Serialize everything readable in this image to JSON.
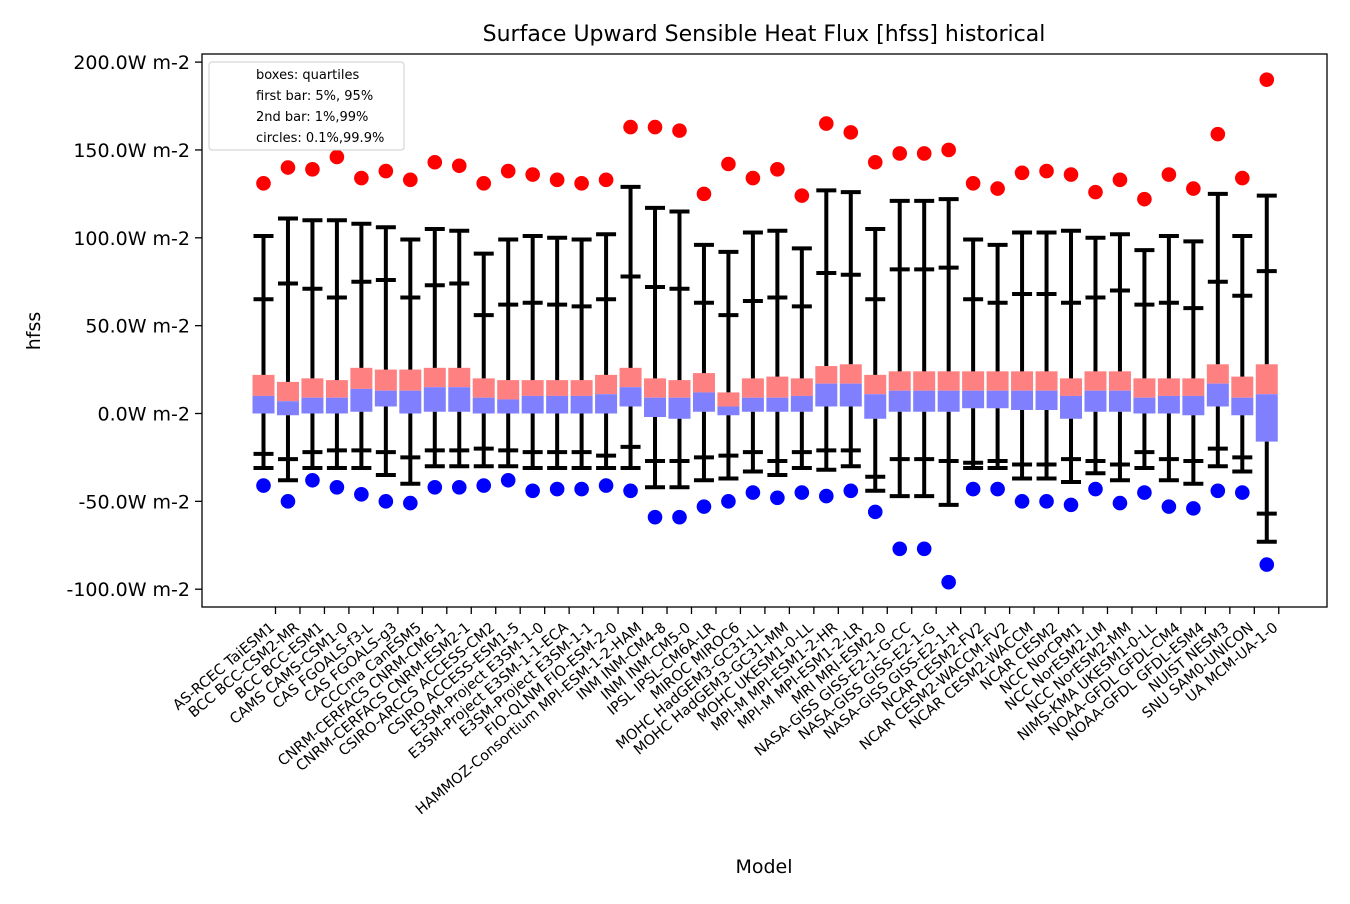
{
  "chart_data": {
    "type": "box",
    "title": "Surface Upward Sensible Heat Flux [hfss] historical",
    "xlabel": "Model",
    "ylabel": "hfss",
    "ylim": [
      -110,
      205
    ],
    "yticks": [
      -100,
      -50,
      0,
      50,
      100,
      150,
      200
    ],
    "ytick_labels": [
      "-100.0W m-2",
      "-50.0W m-2",
      "0.0W m-2",
      "50.0W m-2",
      "100.0W m-2",
      "150.0W m-2",
      "200.0W m-2"
    ],
    "legend": {
      "placement": "top-left",
      "entries": [
        "boxes: quartiles",
        "first bar: 5%, 95%",
        "2nd bar: 1%,99%",
        "circles: 0.1%,99.9%"
      ]
    },
    "colors": {
      "upper_box": "#ff8080",
      "lower_box": "#8080ff",
      "whisker": "#000000",
      "high_circle": "#ff0000",
      "low_circle": "#0000ff"
    },
    "fields": [
      "p0_1",
      "p1",
      "p5",
      "q1",
      "median",
      "q3",
      "p95",
      "p99",
      "p99_9"
    ],
    "models": [
      {
        "name": "AS-RCEC TaiESM1",
        "p0_1": -41,
        "p1": -31,
        "p5": -23,
        "q1": 0,
        "median": 10,
        "q3": 22,
        "p95": 65,
        "p99": 101,
        "p99_9": 131
      },
      {
        "name": "BCC BCC-CSM2-MR",
        "p0_1": -50,
        "p1": -38,
        "p5": -26,
        "q1": -1,
        "median": 7,
        "q3": 18,
        "p95": 74,
        "p99": 111,
        "p99_9": 140
      },
      {
        "name": "BCC BCC-ESM1",
        "p0_1": -38,
        "p1": -31,
        "p5": -22,
        "q1": 0,
        "median": 9,
        "q3": 20,
        "p95": 71,
        "p99": 110,
        "p99_9": 139
      },
      {
        "name": "CAMS CAMS-CSM1-0",
        "p0_1": -42,
        "p1": -31,
        "p5": -21,
        "q1": 0,
        "median": 9,
        "q3": 19,
        "p95": 66,
        "p99": 110,
        "p99_9": 146
      },
      {
        "name": "CAS FGOALS-f3-L",
        "p0_1": -46,
        "p1": -31,
        "p5": -21,
        "q1": 1,
        "median": 14,
        "q3": 26,
        "p95": 75,
        "p99": 108,
        "p99_9": 134
      },
      {
        "name": "CAS FGOALS-g3",
        "p0_1": -50,
        "p1": -35,
        "p5": -22,
        "q1": 4,
        "median": 13,
        "q3": 25,
        "p95": 76,
        "p99": 106,
        "p99_9": 138
      },
      {
        "name": "CCCma CanESM5",
        "p0_1": -51,
        "p1": -40,
        "p5": -25,
        "q1": 0,
        "median": 13,
        "q3": 25,
        "p95": 66,
        "p99": 99,
        "p99_9": 133
      },
      {
        "name": "CNRM-CERFACS CNRM-CM6-1",
        "p0_1": -42,
        "p1": -30,
        "p5": -21,
        "q1": 1,
        "median": 15,
        "q3": 26,
        "p95": 73,
        "p99": 105,
        "p99_9": 143
      },
      {
        "name": "CNRM-CERFACS CNRM-ESM2-1",
        "p0_1": -42,
        "p1": -30,
        "p5": -21,
        "q1": 1,
        "median": 15,
        "q3": 26,
        "p95": 74,
        "p99": 104,
        "p99_9": 141
      },
      {
        "name": "CSIRO-ARCCS ACCESS-CM2",
        "p0_1": -41,
        "p1": -30,
        "p5": -20,
        "q1": 0,
        "median": 9,
        "q3": 20,
        "p95": 56,
        "p99": 91,
        "p99_9": 131
      },
      {
        "name": "CSIRO ACCESS-ESM1-5",
        "p0_1": -38,
        "p1": -30,
        "p5": -21,
        "q1": 0,
        "median": 8,
        "q3": 19,
        "p95": 62,
        "p99": 99,
        "p99_9": 138
      },
      {
        "name": "E3SM-Project E3SM-1-0",
        "p0_1": -44,
        "p1": -31,
        "p5": -22,
        "q1": 0,
        "median": 10,
        "q3": 19,
        "p95": 63,
        "p99": 101,
        "p99_9": 136
      },
      {
        "name": "E3SM-Project E3SM-1-1-ECA",
        "p0_1": -43,
        "p1": -31,
        "p5": -22,
        "q1": 0,
        "median": 10,
        "q3": 19,
        "p95": 62,
        "p99": 100,
        "p99_9": 133
      },
      {
        "name": "E3SM-Project E3SM-1-1",
        "p0_1": -43,
        "p1": -31,
        "p5": -22,
        "q1": 0,
        "median": 10,
        "q3": 19,
        "p95": 61,
        "p99": 99,
        "p99_9": 131
      },
      {
        "name": "FIO-QLNM FIO-ESM-2-0",
        "p0_1": -41,
        "p1": -31,
        "p5": -24,
        "q1": 0,
        "median": 11,
        "q3": 22,
        "p95": 65,
        "p99": 102,
        "p99_9": 133
      },
      {
        "name": "HAMMOZ-Consortium MPI-ESM-1-2-HAM",
        "p0_1": -44,
        "p1": -31,
        "p5": -19,
        "q1": 4,
        "median": 15,
        "q3": 26,
        "p95": 78,
        "p99": 129,
        "p99_9": 163
      },
      {
        "name": "INM INM-CM4-8",
        "p0_1": -59,
        "p1": -42,
        "p5": -27,
        "q1": -2,
        "median": 9,
        "q3": 20,
        "p95": 72,
        "p99": 117,
        "p99_9": 163
      },
      {
        "name": "INM INM-CM5-0",
        "p0_1": -59,
        "p1": -42,
        "p5": -27,
        "q1": -3,
        "median": 9,
        "q3": 19,
        "p95": 71,
        "p99": 115,
        "p99_9": 161
      },
      {
        "name": "IPSL IPSL-CM6A-LR",
        "p0_1": -53,
        "p1": -38,
        "p5": -25,
        "q1": 1,
        "median": 12,
        "q3": 23,
        "p95": 63,
        "p99": 96,
        "p99_9": 125
      },
      {
        "name": "MIROC MIROC6",
        "p0_1": -50,
        "p1": -37,
        "p5": -24,
        "q1": -1,
        "median": 4,
        "q3": 12,
        "p95": 56,
        "p99": 92,
        "p99_9": 142
      },
      {
        "name": "MOHC HadGEM3-GC31-LL",
        "p0_1": -45,
        "p1": -33,
        "p5": -22,
        "q1": 1,
        "median": 9,
        "q3": 20,
        "p95": 64,
        "p99": 103,
        "p99_9": 134
      },
      {
        "name": "MOHC HadGEM3-GC31-MM",
        "p0_1": -48,
        "p1": -35,
        "p5": -27,
        "q1": 1,
        "median": 9,
        "q3": 21,
        "p95": 66,
        "p99": 104,
        "p99_9": 139
      },
      {
        "name": "MOHC UKESM1-0-LL",
        "p0_1": -45,
        "p1": -31,
        "p5": -22,
        "q1": 1,
        "median": 10,
        "q3": 20,
        "p95": 61,
        "p99": 94,
        "p99_9": 124
      },
      {
        "name": "MPI-M MPI-ESM1-2-HR",
        "p0_1": -47,
        "p1": -32,
        "p5": -21,
        "q1": 4,
        "median": 17,
        "q3": 27,
        "p95": 80,
        "p99": 127,
        "p99_9": 165
      },
      {
        "name": "MPI-M MPI-ESM1-2-LR",
        "p0_1": -44,
        "p1": -30,
        "p5": -21,
        "q1": 4,
        "median": 17,
        "q3": 28,
        "p95": 79,
        "p99": 126,
        "p99_9": 160
      },
      {
        "name": "MRI MRI-ESM2-0",
        "p0_1": -56,
        "p1": -44,
        "p5": -36,
        "q1": -3,
        "median": 11,
        "q3": 22,
        "p95": 65,
        "p99": 105,
        "p99_9": 143
      },
      {
        "name": "NASA-GISS GISS-E2-1-G-CC",
        "p0_1": -77,
        "p1": -47,
        "p5": -26,
        "q1": 1,
        "median": 13,
        "q3": 24,
        "p95": 82,
        "p99": 121,
        "p99_9": 148
      },
      {
        "name": "NASA-GISS GISS-E2-1-G",
        "p0_1": -77,
        "p1": -47,
        "p5": -26,
        "q1": 1,
        "median": 13,
        "q3": 24,
        "p95": 82,
        "p99": 121,
        "p99_9": 148
      },
      {
        "name": "NASA-GISS GISS-E2-1-H",
        "p0_1": -96,
        "p1": -52,
        "p5": -27,
        "q1": 1,
        "median": 13,
        "q3": 24,
        "p95": 83,
        "p99": 122,
        "p99_9": 150
      },
      {
        "name": "NCAR CESM2-FV2",
        "p0_1": -43,
        "p1": -31,
        "p5": -28,
        "q1": 3,
        "median": 13,
        "q3": 24,
        "p95": 65,
        "p99": 99,
        "p99_9": 131
      },
      {
        "name": "NCAR CESM2-WACCM-FV2",
        "p0_1": -43,
        "p1": -31,
        "p5": -27,
        "q1": 3,
        "median": 13,
        "q3": 24,
        "p95": 63,
        "p99": 96,
        "p99_9": 128
      },
      {
        "name": "NCAR CESM2-WACCM",
        "p0_1": -50,
        "p1": -37,
        "p5": -29,
        "q1": 2,
        "median": 13,
        "q3": 24,
        "p95": 68,
        "p99": 103,
        "p99_9": 137
      },
      {
        "name": "NCAR CESM2",
        "p0_1": -50,
        "p1": -37,
        "p5": -29,
        "q1": 2,
        "median": 13,
        "q3": 24,
        "p95": 68,
        "p99": 103,
        "p99_9": 138
      },
      {
        "name": "NCC NorCPM1",
        "p0_1": -52,
        "p1": -39,
        "p5": -26,
        "q1": -3,
        "median": 10,
        "q3": 20,
        "p95": 63,
        "p99": 104,
        "p99_9": 136
      },
      {
        "name": "NCC NorESM2-LM",
        "p0_1": -43,
        "p1": -34,
        "p5": -27,
        "q1": 1,
        "median": 13,
        "q3": 24,
        "p95": 66,
        "p99": 100,
        "p99_9": 126
      },
      {
        "name": "NCC NorESM2-MM",
        "p0_1": -51,
        "p1": -38,
        "p5": -29,
        "q1": 1,
        "median": 13,
        "q3": 24,
        "p95": 70,
        "p99": 102,
        "p99_9": 133
      },
      {
        "name": "NIMS-KMA UKESM1-0-LL",
        "p0_1": -45,
        "p1": -31,
        "p5": -22,
        "q1": 0,
        "median": 9,
        "q3": 20,
        "p95": 62,
        "p99": 93,
        "p99_9": 122
      },
      {
        "name": "NOAA-GFDL GFDL-CM4",
        "p0_1": -53,
        "p1": -38,
        "p5": -26,
        "q1": 0,
        "median": 10,
        "q3": 20,
        "p95": 63,
        "p99": 101,
        "p99_9": 136
      },
      {
        "name": "NOAA-GFDL GFDL-ESM4",
        "p0_1": -54,
        "p1": -40,
        "p5": -27,
        "q1": -1,
        "median": 10,
        "q3": 20,
        "p95": 60,
        "p99": 98,
        "p99_9": 128
      },
      {
        "name": "NUIST NESM3",
        "p0_1": -44,
        "p1": -30,
        "p5": -20,
        "q1": 4,
        "median": 17,
        "q3": 28,
        "p95": 75,
        "p99": 125,
        "p99_9": 159
      },
      {
        "name": "SNU SAM0-UNICON",
        "p0_1": -45,
        "p1": -33,
        "p5": -25,
        "q1": -1,
        "median": 9,
        "q3": 21,
        "p95": 67,
        "p99": 101,
        "p99_9": 134
      },
      {
        "name": "UA MCM-UA-1-0",
        "p0_1": -86,
        "p1": -73,
        "p5": -57,
        "q1": -16,
        "median": 11,
        "q3": 28,
        "p95": 81,
        "p99": 124,
        "p99_9": 190
      }
    ]
  }
}
